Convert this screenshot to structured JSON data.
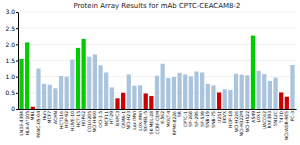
{
  "chart_data": {
    "type": "bar",
    "title": "Protein Array Results for mAb CPTC-CEACAM8-2",
    "categories": [
      "LN33-4394",
      "HLA-A*105",
      "MBL",
      "PANC-05-04",
      "Huh",
      "MCF7",
      "ACHN",
      "HCT116",
      "HOP-92",
      "HUVE-10",
      "HCT-15",
      "HOP62",
      "COLO205",
      "NCI-H460",
      "OCI-1.5",
      "MCF11",
      "HT-29",
      "BXPC3",
      "CAMA-1",
      "NCI-H23",
      "Lox IMVI",
      "LOX-IMVI",
      "SK-MEL-5",
      "SK-MEL-28",
      "CCRF-CEM",
      "K-562",
      "MOLT-4",
      "RPMI-8226",
      "SR",
      "CPTC-1",
      "SF-268",
      "SF-295",
      "SF-539",
      "SNB-19",
      "SNB-75",
      "U251",
      "EKVX",
      "HOP-18",
      "NCI-H226",
      "NCI-H322M",
      "NCI-H522",
      "A549",
      "LOX1",
      "UACC62",
      "RXF393",
      "SN12C",
      "T47D",
      "NCI/ADR-RES",
      "PC-3"
    ],
    "values": [
      1.55,
      2.06,
      0.07,
      1.25,
      0.78,
      0.75,
      0.64,
      1.02,
      1.0,
      1.53,
      1.89,
      2.17,
      1.62,
      1.69,
      1.35,
      1.13,
      0.67,
      0.33,
      0.5,
      1.07,
      0.72,
      0.73,
      0.48,
      0.4,
      1.03,
      1.4,
      0.96,
      0.99,
      1.12,
      1.07,
      1.01,
      1.16,
      1.13,
      0.78,
      0.73,
      0.51,
      0.61,
      0.59,
      1.09,
      1.06,
      1.04,
      2.27,
      1.18,
      1.08,
      0.87,
      0.97,
      0.51,
      0.38,
      1.36
    ],
    "colors": [
      "#00cc00",
      "#00cc00",
      "#cc0000",
      "#aac4dd",
      "#aac4dd",
      "#aac4dd",
      "#aac4dd",
      "#aac4dd",
      "#aac4dd",
      "#aac4dd",
      "#00cc00",
      "#00cc00",
      "#aac4dd",
      "#aac4dd",
      "#aac4dd",
      "#aac4dd",
      "#aac4dd",
      "#cc0000",
      "#cc0000",
      "#aac4dd",
      "#aac4dd",
      "#aac4dd",
      "#cc0000",
      "#cc0000",
      "#aac4dd",
      "#aac4dd",
      "#aac4dd",
      "#aac4dd",
      "#aac4dd",
      "#aac4dd",
      "#aac4dd",
      "#aac4dd",
      "#aac4dd",
      "#aac4dd",
      "#aac4dd",
      "#cc0000",
      "#aac4dd",
      "#aac4dd",
      "#aac4dd",
      "#aac4dd",
      "#aac4dd",
      "#00cc00",
      "#aac4dd",
      "#aac4dd",
      "#aac4dd",
      "#aac4dd",
      "#cc0000",
      "#cc0000",
      "#aac4dd"
    ],
    "ylim": [
      0.0,
      3.0
    ],
    "yticks": [
      0,
      0.5,
      {
        "value": 1,
        "label": "1.0"
      },
      1.5,
      {
        "value": 2,
        "label": "2.0"
      },
      2.5,
      {
        "value": 3,
        "label": "3.0"
      }
    ],
    "grid": true
  }
}
